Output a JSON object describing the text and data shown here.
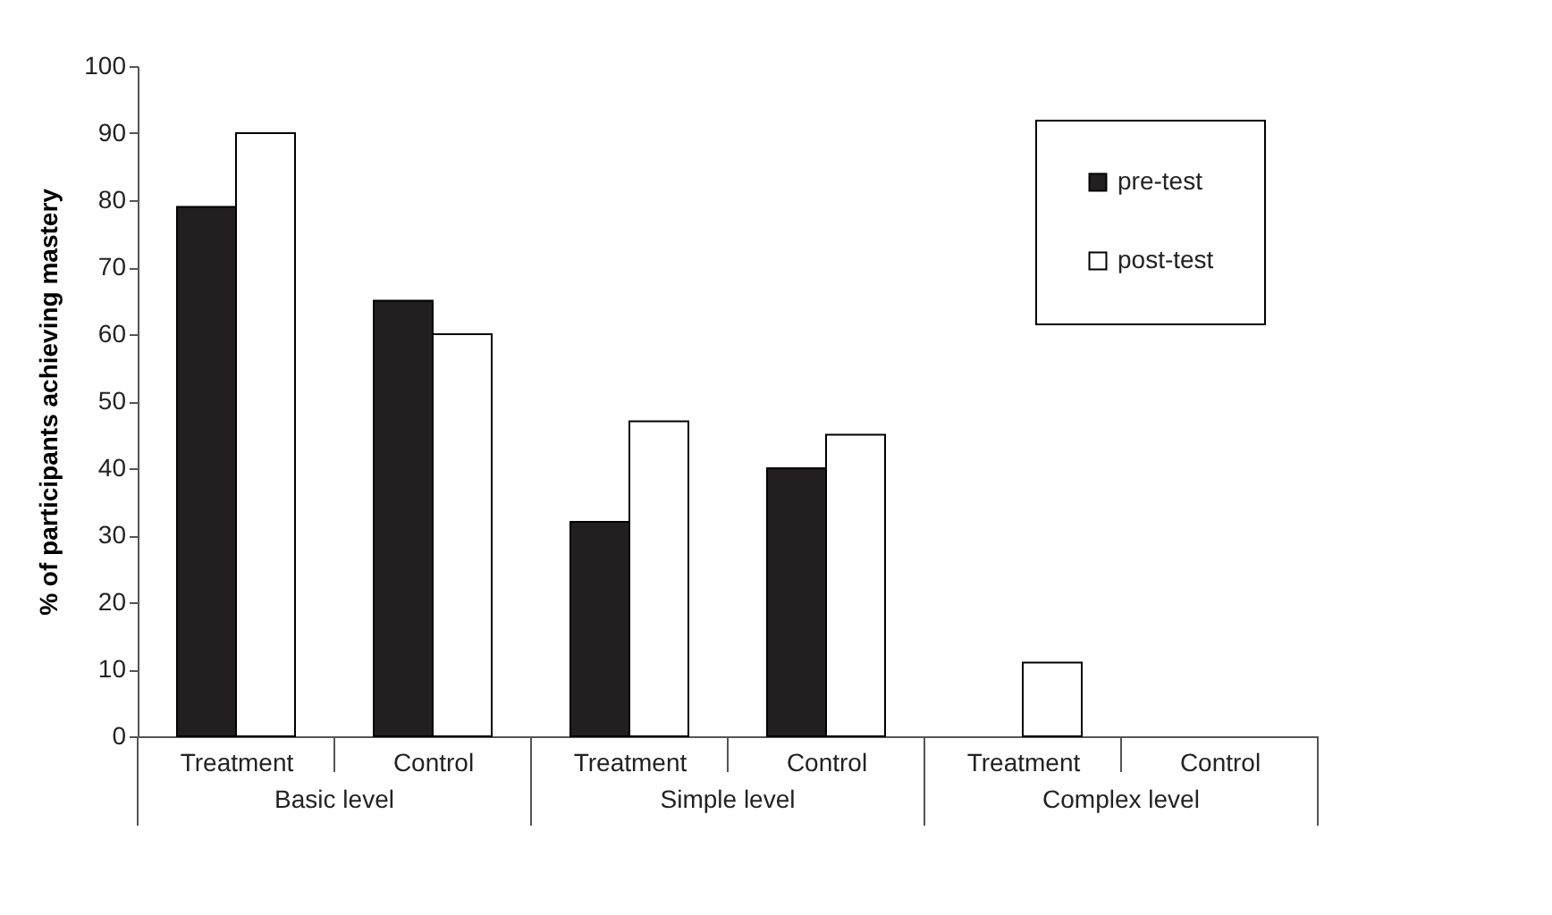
{
  "chart_data": {
    "type": "bar",
    "ylabel": "% of participants achieving mastery",
    "categories": [
      "Treatment",
      "Control",
      "Treatment",
      "Control",
      "Treatment",
      "Control"
    ],
    "series": [
      {
        "name": "pre-test",
        "color": "#231f20",
        "values": [
          79,
          65,
          32,
          40,
          0,
          0
        ]
      },
      {
        "name": "post-test",
        "color": "#ffffff",
        "values": [
          90,
          60,
          47,
          45,
          11,
          0
        ]
      }
    ],
    "annotations": [
      "Basic level",
      "Simple level",
      "Complex  level"
    ],
    "ylim": [
      0,
      100
    ],
    "yticks": [
      0,
      10,
      20,
      30,
      40,
      50,
      60,
      70,
      80,
      90,
      100
    ],
    "grid": false,
    "legend": "top right"
  }
}
